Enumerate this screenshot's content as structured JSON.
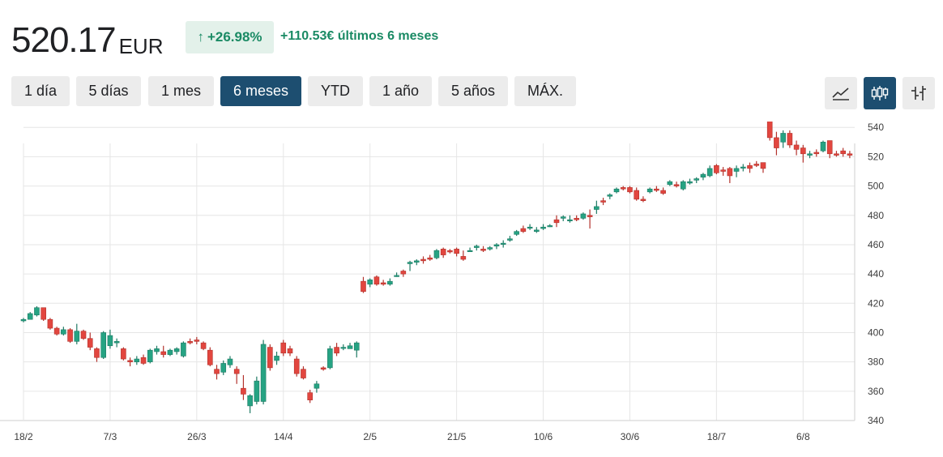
{
  "quote": {
    "price": "520.17",
    "currency": "EUR",
    "change_percent": "+26.98%",
    "change_arrow": "↑",
    "change_text": "+110.53€ últimos 6 meses"
  },
  "ranges": [
    {
      "label": "1 día",
      "active": false
    },
    {
      "label": "5 días",
      "active": false
    },
    {
      "label": "1 mes",
      "active": false
    },
    {
      "label": "6 meses",
      "active": true
    },
    {
      "label": "YTD",
      "active": false
    },
    {
      "label": "1 año",
      "active": false
    },
    {
      "label": "5 años",
      "active": false
    },
    {
      "label": "MÁX.",
      "active": false
    }
  ],
  "chart_types": [
    {
      "icon": "line-chart-icon",
      "active": false
    },
    {
      "icon": "candlestick-chart-icon",
      "active": true
    },
    {
      "icon": "ohlc-bar-chart-icon",
      "active": false
    }
  ],
  "colors": {
    "up": "#26a383",
    "up_dark": "#1f7a64",
    "down": "#e2463f",
    "down_dark": "#b3322c",
    "grid": "#e6e6e6",
    "accent": "#1d4e70",
    "positive_text": "#1a8a64"
  },
  "chart_data": {
    "type": "candlestick",
    "y_axis_position": "right",
    "ylim": [
      340,
      544
    ],
    "y_ticks": [
      340,
      360,
      380,
      400,
      420,
      440,
      460,
      480,
      500,
      520,
      540
    ],
    "x_tick_labels": [
      {
        "label": "18/2",
        "index": 0
      },
      {
        "label": "7/3",
        "index": 13
      },
      {
        "label": "26/3",
        "index": 26
      },
      {
        "label": "14/4",
        "index": 39
      },
      {
        "label": "2/5",
        "index": 52
      },
      {
        "label": "21/5",
        "index": 65
      },
      {
        "label": "10/6",
        "index": 78
      },
      {
        "label": "30/6",
        "index": 91
      },
      {
        "label": "18/7",
        "index": 104
      },
      {
        "label": "6/8",
        "index": 117
      }
    ],
    "grid": true,
    "candles": [
      [
        408,
        410,
        407,
        409
      ],
      [
        409,
        414,
        409,
        413
      ],
      [
        412,
        418,
        411,
        417
      ],
      [
        417,
        417,
        408,
        409
      ],
      [
        409,
        410,
        402,
        403
      ],
      [
        403,
        404,
        398,
        399
      ],
      [
        399,
        404,
        398,
        402
      ],
      [
        402,
        403,
        393,
        394
      ],
      [
        394,
        406,
        392,
        401
      ],
      [
        401,
        402,
        395,
        396
      ],
      [
        396,
        400,
        388,
        390
      ],
      [
        389,
        390,
        380,
        383
      ],
      [
        383,
        401,
        382,
        400
      ],
      [
        391,
        402,
        389,
        398
      ],
      [
        393,
        396,
        390,
        394
      ],
      [
        389,
        390,
        381,
        382
      ],
      [
        381,
        383,
        377,
        380
      ],
      [
        380,
        384,
        378,
        382
      ],
      [
        383,
        385,
        378,
        379
      ],
      [
        380,
        389,
        379,
        388
      ],
      [
        387,
        391,
        385,
        389
      ],
      [
        387,
        391,
        383,
        385
      ],
      [
        385,
        389,
        384,
        388
      ],
      [
        387,
        390,
        385,
        389
      ],
      [
        384,
        394,
        383,
        393
      ],
      [
        394,
        396,
        392,
        393
      ],
      [
        395,
        397,
        392,
        394
      ],
      [
        393,
        394,
        388,
        389
      ],
      [
        388,
        390,
        377,
        378
      ],
      [
        375,
        378,
        368,
        372
      ],
      [
        373,
        381,
        371,
        379
      ],
      [
        378,
        384,
        376,
        382
      ],
      [
        375,
        377,
        365,
        372
      ],
      [
        362,
        371,
        354,
        358
      ],
      [
        350,
        358,
        345,
        357
      ],
      [
        353,
        370,
        351,
        367
      ],
      [
        353,
        395,
        351,
        392
      ],
      [
        390,
        392,
        374,
        376
      ],
      [
        381,
        387,
        378,
        384
      ],
      [
        393,
        395,
        384,
        386
      ],
      [
        389,
        391,
        384,
        386
      ],
      [
        382,
        384,
        370,
        372
      ],
      [
        375,
        377,
        368,
        369
      ],
      [
        359,
        361,
        352,
        354
      ],
      [
        362,
        367,
        359,
        365
      ],
      [
        376,
        377,
        374,
        375
      ],
      [
        376,
        391,
        375,
        389
      ],
      [
        390,
        393,
        384,
        386
      ],
      [
        390,
        392,
        388,
        390
      ],
      [
        389,
        393,
        389,
        391
      ],
      [
        388,
        394,
        383,
        393
      ],
      [
        435,
        438,
        427,
        428
      ],
      [
        433,
        437,
        431,
        436
      ],
      [
        438,
        439,
        432,
        433
      ],
      [
        434,
        436,
        432,
        433
      ],
      [
        433,
        437,
        432,
        435
      ],
      [
        439,
        441,
        438,
        439
      ],
      [
        442,
        443,
        438,
        440
      ],
      [
        447,
        449,
        442,
        448
      ],
      [
        448,
        450,
        446,
        449
      ],
      [
        450,
        452,
        447,
        449
      ],
      [
        451,
        453,
        449,
        450
      ],
      [
        451,
        457,
        450,
        456
      ],
      [
        457,
        458,
        451,
        453
      ],
      [
        456,
        457,
        454,
        455
      ],
      [
        457,
        458,
        452,
        454
      ],
      [
        452,
        456,
        449,
        450
      ],
      [
        456,
        458,
        455,
        456
      ],
      [
        458,
        460,
        456,
        459
      ],
      [
        457,
        459,
        455,
        456
      ],
      [
        457,
        459,
        456,
        458
      ],
      [
        459,
        461,
        457,
        460
      ],
      [
        461,
        463,
        458,
        461
      ],
      [
        463,
        466,
        462,
        464
      ],
      [
        467,
        470,
        466,
        469
      ],
      [
        471,
        473,
        468,
        469
      ],
      [
        472,
        474,
        470,
        472
      ],
      [
        469,
        472,
        468,
        470
      ],
      [
        471,
        474,
        470,
        472
      ],
      [
        473,
        474,
        472,
        473
      ],
      [
        477,
        480,
        472,
        475
      ],
      [
        478,
        480,
        476,
        479
      ],
      [
        477,
        480,
        475,
        477
      ],
      [
        478,
        480,
        476,
        477
      ],
      [
        478,
        482,
        477,
        481
      ],
      [
        480,
        484,
        471,
        479
      ],
      [
        484,
        490,
        481,
        486
      ],
      [
        490,
        492,
        487,
        489
      ],
      [
        493,
        495,
        491,
        494
      ],
      [
        496,
        499,
        495,
        498
      ],
      [
        499,
        500,
        497,
        498
      ],
      [
        499,
        500,
        495,
        496
      ],
      [
        497,
        499,
        490,
        491
      ],
      [
        491,
        493,
        489,
        490
      ],
      [
        496,
        499,
        495,
        498
      ],
      [
        498,
        500,
        496,
        497
      ],
      [
        497,
        499,
        494,
        495
      ],
      [
        501,
        504,
        500,
        503
      ],
      [
        501,
        503,
        499,
        500
      ],
      [
        498,
        504,
        497,
        503
      ],
      [
        502,
        505,
        501,
        503
      ],
      [
        504,
        506,
        502,
        505
      ],
      [
        506,
        509,
        504,
        508
      ],
      [
        507,
        514,
        506,
        512
      ],
      [
        514,
        515,
        508,
        509
      ],
      [
        511,
        513,
        507,
        510
      ],
      [
        512,
        513,
        502,
        507
      ],
      [
        510,
        514,
        506,
        512
      ],
      [
        513,
        515,
        510,
        513
      ],
      [
        514,
        516,
        509,
        512
      ],
      [
        515,
        517,
        513,
        514
      ],
      [
        516,
        516,
        509,
        512
      ],
      [
        549,
        550,
        531,
        533
      ],
      [
        533,
        537,
        521,
        526
      ],
      [
        530,
        538,
        526,
        536
      ],
      [
        536,
        538,
        526,
        528
      ],
      [
        528,
        531,
        521,
        525
      ],
      [
        526,
        528,
        516,
        522
      ],
      [
        521,
        524,
        519,
        522
      ],
      [
        523,
        525,
        520,
        522
      ],
      [
        524,
        531,
        523,
        530
      ],
      [
        531,
        531,
        519,
        522
      ],
      [
        522,
        524,
        520,
        521
      ],
      [
        524,
        526,
        520,
        522
      ],
      [
        522,
        524,
        519,
        521
      ]
    ]
  }
}
